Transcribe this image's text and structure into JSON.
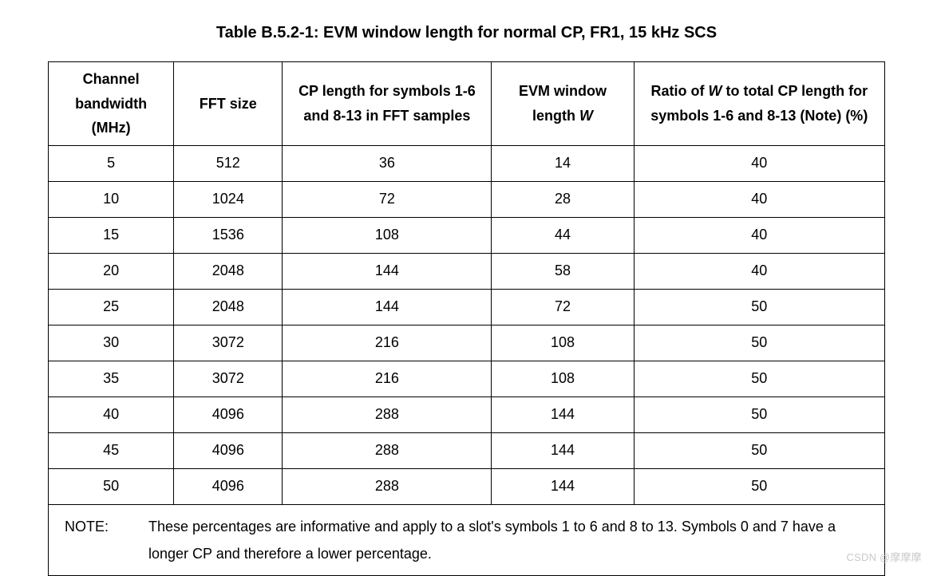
{
  "title": "Table B.5.2-1: EVM window length for normal CP, FR1, 15 kHz SCS",
  "table": {
    "col_widths_pct": [
      15,
      13,
      25,
      17,
      30
    ],
    "border_color": "#000000",
    "background_color": "#ffffff",
    "header_fontsize": 18,
    "header_fontweight": 700,
    "data_fontsize": 18,
    "data_fontweight": 400,
    "columns": [
      "Channel bandwidth (MHz)",
      "FFT size",
      "CP length for symbols 1-6 and 8-13 in FFT samples",
      "EVM window length W",
      "Ratio of W to total CP length for symbols 1-6 and 8-13 (Note) (%)"
    ],
    "rows": [
      [
        "5",
        "512",
        "36",
        "14",
        "40"
      ],
      [
        "10",
        "1024",
        "72",
        "28",
        "40"
      ],
      [
        "15",
        "1536",
        "108",
        "44",
        "40"
      ],
      [
        "20",
        "2048",
        "144",
        "58",
        "40"
      ],
      [
        "25",
        "2048",
        "144",
        "72",
        "50"
      ],
      [
        "30",
        "3072",
        "216",
        "108",
        "50"
      ],
      [
        "35",
        "3072",
        "216",
        "108",
        "50"
      ],
      [
        "40",
        "4096",
        "288",
        "144",
        "50"
      ],
      [
        "45",
        "4096",
        "288",
        "144",
        "50"
      ],
      [
        "50",
        "4096",
        "288",
        "144",
        "50"
      ]
    ],
    "note_label": "NOTE:",
    "note_text": "These percentages are informative and apply to a slot's symbols 1 to 6 and 8 to 13. Symbols 0 and 7 have a longer CP and therefore a lower percentage."
  },
  "watermark": "CSDN @摩摩摩"
}
